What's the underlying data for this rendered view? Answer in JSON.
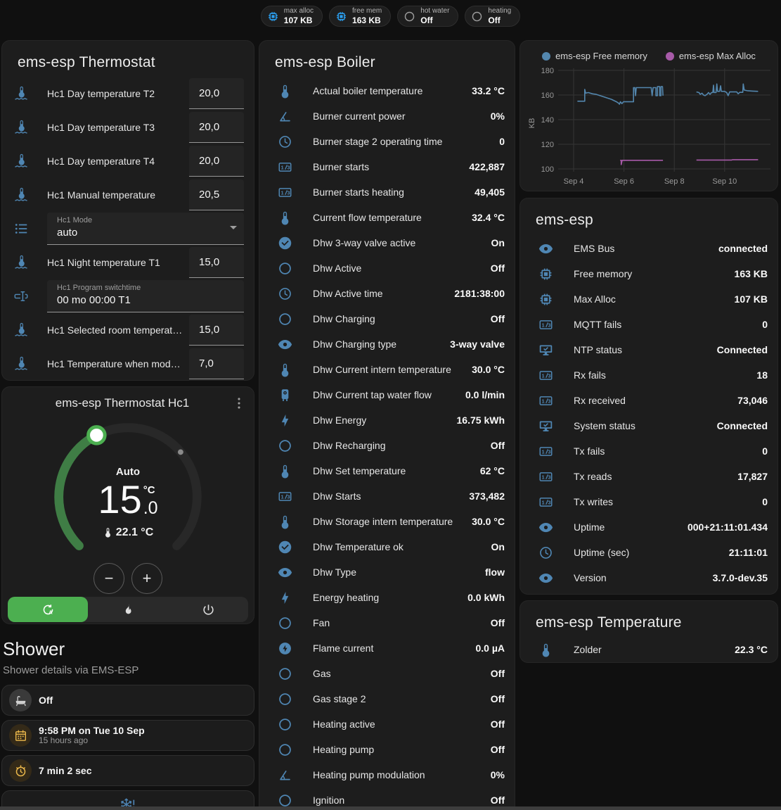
{
  "badges": [
    {
      "icon": "memory",
      "icon_color": "#2b9ff0",
      "label": "max alloc",
      "value": "107 KB"
    },
    {
      "icon": "memory",
      "icon_color": "#2b9ff0",
      "label": "free mem",
      "value": "163 KB"
    },
    {
      "icon": "circle-outline",
      "icon_color": "#9e9e9e",
      "label": "hot water",
      "value": "Off"
    },
    {
      "icon": "circle-outline",
      "icon_color": "#9e9e9e",
      "label": "heating",
      "value": "Off"
    }
  ],
  "thermostat_card": {
    "title": "ems-esp Thermostat",
    "rows": [
      {
        "type": "number",
        "icon": "thermometer-water",
        "label": "Hc1 Day temperature T2",
        "value": "20,0"
      },
      {
        "type": "number",
        "icon": "thermometer-water",
        "label": "Hc1 Day temperature T3",
        "value": "20,0"
      },
      {
        "type": "number",
        "icon": "thermometer-water",
        "label": "Hc1 Day temperature T4",
        "value": "20,0"
      },
      {
        "type": "number",
        "icon": "thermometer-water",
        "label": "Hc1 Manual temperature",
        "value": "20,5"
      },
      {
        "type": "select",
        "icon": "list",
        "label": "Hc1 Mode",
        "value": "auto"
      },
      {
        "type": "number",
        "icon": "thermometer-water",
        "label": "Hc1 Night temperature T1",
        "value": "15,0"
      },
      {
        "type": "text",
        "icon": "form-textbox",
        "label": "Hc1 Program switchtime",
        "value": "00 mo 00:00 T1"
      },
      {
        "type": "number",
        "icon": "thermometer-water",
        "label": "Hc1 Selected room temperat…",
        "value": "15,0"
      },
      {
        "type": "number",
        "icon": "thermometer-water",
        "label": "Hc1 Temperature when mod…",
        "value": "7,0"
      }
    ]
  },
  "dial_card": {
    "title": "ems-esp Thermostat Hc1",
    "mode_label": "Auto",
    "target_int": "15",
    "target_unit": "°C",
    "target_frac": ".0",
    "current_temp": "22.1 °C",
    "minus_label": "−",
    "plus_label": "+",
    "arc_green": "#3f7d45",
    "knob_ring": "#4caf50",
    "modes": [
      {
        "icon": "thermostat-auto",
        "name": "auto",
        "active": true
      },
      {
        "icon": "fire",
        "name": "heat",
        "active": false
      },
      {
        "icon": "power",
        "name": "off",
        "active": false
      }
    ]
  },
  "shower": {
    "title": "Shower",
    "subtitle": "Shower details via EMS-ESP",
    "tiles": [
      {
        "icon": "bathtub",
        "icon_color": "#cfcfcf",
        "icon_bg": "#3a3a3a",
        "primary": "Off",
        "secondary": ""
      },
      {
        "icon": "calendar",
        "icon_color": "#e9b64a",
        "icon_bg": "#342a18",
        "primary": "9:58 PM on Tue 10 Sep",
        "secondary": "15 hours ago"
      },
      {
        "icon": "timer",
        "icon_color": "#e9b64a",
        "icon_bg": "#342a18",
        "primary": "7 min 2 sec",
        "secondary": ""
      },
      {
        "icon": "snowflake-alert",
        "icon_color": "#4d82b0",
        "icon_bg": "none",
        "primary": "",
        "secondary": "",
        "centered": true
      }
    ]
  },
  "boiler_card": {
    "title": "ems-esp Boiler",
    "rows": [
      {
        "icon": "thermometer",
        "label": "Actual boiler temperature",
        "value": "33.2 °C"
      },
      {
        "icon": "angle-acute",
        "label": "Burner current power",
        "value": "0%"
      },
      {
        "icon": "clock",
        "label": "Burner stage 2 operating time",
        "value": "0"
      },
      {
        "icon": "counter",
        "label": "Burner starts",
        "value": "422,887"
      },
      {
        "icon": "counter",
        "label": "Burner starts heating",
        "value": "49,405"
      },
      {
        "icon": "thermometer",
        "label": "Current flow temperature",
        "value": "32.4 °C"
      },
      {
        "icon": "check-circle",
        "label": "Dhw 3-way valve active",
        "value": "On"
      },
      {
        "icon": "circle-outline",
        "label": "Dhw Active",
        "value": "Off"
      },
      {
        "icon": "clock",
        "label": "Dhw Active time",
        "value": "2181:38:00"
      },
      {
        "icon": "circle-outline",
        "label": "Dhw Charging",
        "value": "Off"
      },
      {
        "icon": "eye",
        "label": "Dhw Charging type",
        "value": "3-way valve"
      },
      {
        "icon": "thermometer",
        "label": "Dhw Current intern temperature",
        "value": "30.0 °C"
      },
      {
        "icon": "water-boiler",
        "label": "Dhw Current tap water flow",
        "value": "0.0 l/min"
      },
      {
        "icon": "flash",
        "label": "Dhw Energy",
        "value": "16.75 kWh"
      },
      {
        "icon": "circle-outline",
        "label": "Dhw Recharging",
        "value": "Off"
      },
      {
        "icon": "thermometer",
        "label": "Dhw Set temperature",
        "value": "62 °C"
      },
      {
        "icon": "counter",
        "label": "Dhw Starts",
        "value": "373,482"
      },
      {
        "icon": "thermometer",
        "label": "Dhw Storage intern temperature",
        "value": "30.0 °C"
      },
      {
        "icon": "check-circle",
        "label": "Dhw Temperature ok",
        "value": "On"
      },
      {
        "icon": "eye",
        "label": "Dhw Type",
        "value": "flow"
      },
      {
        "icon": "flash",
        "label": "Energy heating",
        "value": "0.0 kWh"
      },
      {
        "icon": "circle-outline",
        "label": "Fan",
        "value": "Off"
      },
      {
        "icon": "flash-circle",
        "label": "Flame current",
        "value": "0.0 µA"
      },
      {
        "icon": "circle-outline",
        "label": "Gas",
        "value": "Off"
      },
      {
        "icon": "circle-outline",
        "label": "Gas stage 2",
        "value": "Off"
      },
      {
        "icon": "circle-outline",
        "label": "Heating active",
        "value": "Off"
      },
      {
        "icon": "circle-outline",
        "label": "Heating pump",
        "value": "Off"
      },
      {
        "icon": "angle-acute",
        "label": "Heating pump modulation",
        "value": "0%"
      },
      {
        "icon": "circle-outline",
        "label": "Ignition",
        "value": "Off"
      }
    ]
  },
  "esp_card": {
    "title": "ems-esp",
    "rows": [
      {
        "icon": "eye",
        "label": "EMS Bus",
        "value": "connected"
      },
      {
        "icon": "memory",
        "label": "Free memory",
        "value": "163 KB"
      },
      {
        "icon": "memory",
        "label": "Max Alloc",
        "value": "107 KB"
      },
      {
        "icon": "counter",
        "label": "MQTT fails",
        "value": "0"
      },
      {
        "icon": "monitor-check",
        "label": "NTP status",
        "value": "Connected"
      },
      {
        "icon": "counter",
        "label": "Rx fails",
        "value": "18"
      },
      {
        "icon": "counter",
        "label": "Rx received",
        "value": "73,046"
      },
      {
        "icon": "monitor-check",
        "label": "System status",
        "value": "Connected"
      },
      {
        "icon": "counter",
        "label": "Tx fails",
        "value": "0"
      },
      {
        "icon": "counter",
        "label": "Tx reads",
        "value": "17,827"
      },
      {
        "icon": "counter",
        "label": "Tx writes",
        "value": "0"
      },
      {
        "icon": "eye",
        "label": "Uptime",
        "value": "000+21:11:01.434"
      },
      {
        "icon": "clock",
        "label": "Uptime (sec)",
        "value": "21:11:01"
      },
      {
        "icon": "eye",
        "label": "Version",
        "value": "3.7.0-dev.35"
      }
    ]
  },
  "temp_card": {
    "title": "ems-esp Temperature",
    "rows": [
      {
        "icon": "thermometer",
        "label": "Zolder",
        "value": "22.3 °C"
      }
    ]
  },
  "chart_data": {
    "type": "line",
    "ylabel": "KB",
    "ylim": [
      100,
      180
    ],
    "yticks": [
      100,
      120,
      140,
      160,
      180
    ],
    "xticks": [
      {
        "day": 4,
        "label": "Sep 4"
      },
      {
        "day": 6,
        "label": "Sep 6"
      },
      {
        "day": 8,
        "label": "Sep 8"
      },
      {
        "day": 10,
        "label": "Sep 10"
      }
    ],
    "grid": true,
    "legend_position": "top",
    "series": [
      {
        "name": "ems-esp Free memory",
        "color": "#5386ad",
        "segments": [
          [
            [
              4.15,
              155
            ],
            [
              4.44,
              155
            ],
            [
              4.44,
              164.5
            ],
            [
              4.48,
              161.5
            ],
            [
              4.58,
              162
            ],
            [
              4.75,
              161
            ],
            [
              4.9,
              160.5
            ],
            [
              5.05,
              159.5
            ],
            [
              5.2,
              158.5
            ],
            [
              5.35,
              157.5
            ],
            [
              5.5,
              156.5
            ],
            [
              5.6,
              155.5
            ],
            [
              5.7,
              154.5
            ],
            [
              5.78,
              153.5
            ],
            [
              5.82,
              152.5
            ],
            [
              5.86,
              154.5
            ],
            [
              5.92,
              153
            ],
            [
              5.98,
              154.5
            ],
            [
              6.38,
              154.5
            ],
            [
              6.38,
              166
            ],
            [
              6.43,
              166
            ],
            [
              6.46,
              159.5
            ],
            [
              6.49,
              166
            ],
            [
              7.08,
              166
            ],
            [
              7.12,
              159.5
            ],
            [
              7.16,
              166
            ],
            [
              7.27,
              166
            ],
            [
              7.27,
              159.5
            ],
            [
              7.33,
              159.5
            ],
            [
              7.33,
              166.8
            ],
            [
              7.42,
              166.8
            ],
            [
              7.42,
              159.5
            ],
            [
              7.47,
              159.5
            ],
            [
              7.47,
              166.8
            ],
            [
              7.53,
              166.8
            ],
            [
              7.55,
              159.5
            ]
          ],
          [
            [
              8.88,
              162.5
            ],
            [
              8.98,
              162
            ],
            [
              9.03,
              160.5
            ],
            [
              9.1,
              161.5
            ],
            [
              9.16,
              160
            ],
            [
              9.22,
              159.5
            ],
            [
              9.3,
              160.5
            ],
            [
              9.36,
              162
            ],
            [
              9.42,
              160.5
            ],
            [
              9.48,
              162
            ],
            [
              9.53,
              162
            ],
            [
              9.56,
              168
            ],
            [
              9.58,
              162
            ],
            [
              9.66,
              162
            ],
            [
              9.69,
              169
            ],
            [
              9.72,
              163
            ],
            [
              9.8,
              163
            ],
            [
              9.84,
              167.5
            ],
            [
              9.87,
              163
            ],
            [
              10.0,
              163
            ],
            [
              10.08,
              162
            ],
            [
              10.14,
              159.5
            ],
            [
              10.2,
              162.5
            ],
            [
              10.48,
              162.5
            ],
            [
              10.54,
              161
            ],
            [
              10.6,
              162.2
            ],
            [
              10.72,
              162.2
            ],
            [
              10.74,
              169
            ],
            [
              10.78,
              164
            ],
            [
              10.9,
              163.5
            ],
            [
              11.1,
              163.2
            ],
            [
              11.33,
              163
            ]
          ]
        ]
      },
      {
        "name": "ems-esp Max Alloc",
        "color": "#a75aa8",
        "segments": [
          [
            [
              5.85,
              107
            ],
            [
              5.89,
              107
            ],
            [
              5.89,
              103.5
            ],
            [
              5.93,
              107
            ],
            [
              7.55,
              107
            ]
          ],
          [
            [
              8.88,
              107.2
            ],
            [
              10.28,
              107.2
            ],
            [
              10.32,
              107.5
            ],
            [
              11.33,
              107.5
            ]
          ]
        ]
      }
    ]
  }
}
